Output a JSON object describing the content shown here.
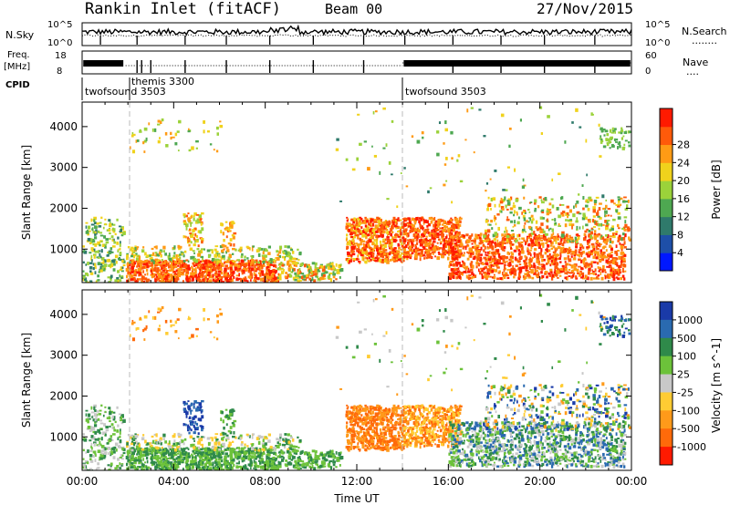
{
  "header": {
    "station": "Rankin Inlet (fitACF)",
    "beam": "Beam 00",
    "date": "27/Nov/2015"
  },
  "strip_panels": {
    "nsky": {
      "left_label": "N.Sky",
      "left_ticks": [
        "10^5",
        "10^0"
      ],
      "right_label": "N.Search",
      "right_line": "........",
      "right_ticks": [
        "10^5",
        "10^0"
      ]
    },
    "freq": {
      "left_label_1": "Freq.",
      "left_label_2": "[MHz]",
      "left_ticks": [
        "18",
        "8"
      ],
      "right_label": "Nave",
      "right_line": "....",
      "right_ticks": [
        "60",
        "0"
      ]
    },
    "cpid": {
      "label": "CPID",
      "segments": [
        {
          "name": "twofsound 3503",
          "start_h": 0.0
        },
        {
          "name": "themis 3300",
          "start_h": 1.85
        },
        {
          "name": "twofsound 3503",
          "start_h": 14.0
        }
      ]
    }
  },
  "chart_data": [
    {
      "type": "heatmap",
      "panel": "power",
      "title": "",
      "xlabel": "",
      "ylabel": "Slant Range [km]",
      "xlim_hours": [
        0,
        24
      ],
      "ylim": [
        180,
        4600
      ],
      "x_ticks": [
        "00:00",
        "04:00",
        "08:00",
        "12:00",
        "16:00",
        "20:00",
        "00:00"
      ],
      "y_ticks": [
        1000,
        2000,
        3000,
        4000
      ],
      "colorbar": {
        "label": "Power [dB]",
        "ticks": [
          "4",
          "8",
          "12",
          "16",
          "20",
          "24",
          "28"
        ],
        "range": [
          0,
          32
        ],
        "colors": [
          "#0018ff",
          "#1e4fa8",
          "#2f7a6b",
          "#4ea851",
          "#9bd23a",
          "#f0d21c",
          "#ff9b15",
          "#ff5a0a",
          "#ff1a00"
        ]
      },
      "dashed_lines_hours": [
        1.85,
        14.0
      ]
    },
    {
      "type": "heatmap",
      "panel": "velocity",
      "title": "",
      "xlabel": "Time UT",
      "ylabel": "Slant Range [km]",
      "xlim_hours": [
        0,
        24
      ],
      "ylim": [
        180,
        4600
      ],
      "x_ticks": [
        "00:00",
        "04:00",
        "08:00",
        "12:00",
        "16:00",
        "20:00",
        "00:00"
      ],
      "y_ticks": [
        1000,
        2000,
        3000,
        4000
      ],
      "colorbar": {
        "label": "Velocity [m s^-1]",
        "ticks": [
          "1000",
          "500",
          "100",
          "25",
          "-25",
          "-100",
          "-500",
          "-1000"
        ],
        "colors": [
          "#1a3aa8",
          "#2a6ab0",
          "#2f8a4a",
          "#6cc23a",
          "#c8c8c8",
          "#ffcc33",
          "#ff9a1a",
          "#ff6a0a",
          "#ff1a00"
        ]
      },
      "dashed_lines_hours": [
        1.85,
        14.0
      ]
    }
  ]
}
